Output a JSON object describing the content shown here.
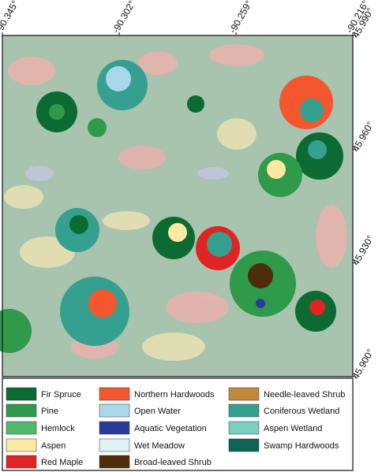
{
  "map": {
    "longitude_labels": [
      "-90.345°",
      "-90.302°",
      "-90.259°",
      "-90.216°"
    ],
    "latitude_labels": [
      "45.990°",
      "45.960°",
      "45.930°",
      "45.900°"
    ]
  },
  "legend": [
    {
      "label": "Fir Spruce",
      "color": "#0b6b32"
    },
    {
      "label": "Pine",
      "color": "#2e9a4a"
    },
    {
      "label": "Hemlock",
      "color": "#52b86a"
    },
    {
      "label": "Aspen",
      "color": "#fde9a4"
    },
    {
      "label": "Red Maple",
      "color": "#e02424"
    },
    {
      "label": "Northern Hardwoods",
      "color": "#f4562e"
    },
    {
      "label": "Open Water",
      "color": "#a9d8ea"
    },
    {
      "label": "Aquatic Vegetation",
      "color": "#2b3a9a"
    },
    {
      "label": "Wet Meadow",
      "color": "#dff2f6"
    },
    {
      "label": "Broad-leaved Shrub",
      "color": "#4f2c0a"
    },
    {
      "label": "Needle-leaved Shrub",
      "color": "#c08a3a"
    },
    {
      "label": "Coniferous  Wetland",
      "color": "#36a090"
    },
    {
      "label": "Aspen  Wetland",
      "color": "#7ccfc0"
    },
    {
      "label": "Swamp Hardwoods",
      "color": "#0e6456"
    }
  ]
}
